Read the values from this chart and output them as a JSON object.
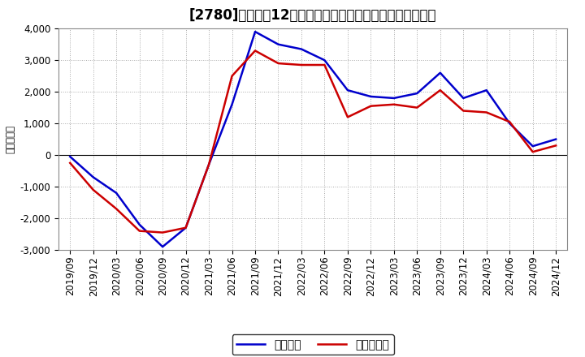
{
  "title": "[2780]　利益だ12か月移動合計の対前年同期増減額の推移",
  "ylabel": "（百万円）",
  "x_labels": [
    "2019/09",
    "2019/12",
    "2020/03",
    "2020/06",
    "2020/09",
    "2020/12",
    "2021/03",
    "2021/06",
    "2021/09",
    "2021/12",
    "2022/03",
    "2022/06",
    "2022/09",
    "2022/12",
    "2023/03",
    "2023/06",
    "2023/09",
    "2023/12",
    "2024/03",
    "2024/06",
    "2024/09",
    "2024/12"
  ],
  "keijo_rieki": [
    -50,
    -700,
    -1200,
    -2200,
    -2900,
    -2300,
    -300,
    1600,
    3900,
    3500,
    3350,
    3000,
    2050,
    1850,
    1800,
    1950,
    2600,
    1800,
    2050,
    1000,
    280,
    500
  ],
  "touki_junrieki": [
    -250,
    -1100,
    -1700,
    -2400,
    -2450,
    -2300,
    -300,
    2500,
    3300,
    2900,
    2850,
    2850,
    1200,
    1550,
    1600,
    1500,
    2050,
    1400,
    1350,
    1050,
    100,
    300
  ],
  "line_color_blue": "#0000CC",
  "line_color_red": "#CC0000",
  "ylim": [
    -3000,
    4000
  ],
  "yticks": [
    -3000,
    -2000,
    -1000,
    0,
    1000,
    2000,
    3000,
    4000
  ],
  "legend_label_0": "経常利益",
  "legend_label_1": "当期純利益",
  "bg_color": "#FFFFFF",
  "plot_bg_color": "#FFFFFF",
  "grid_color": "#AAAAAA",
  "title_fontsize": 12,
  "axis_fontsize": 8.5,
  "legend_fontsize": 10
}
